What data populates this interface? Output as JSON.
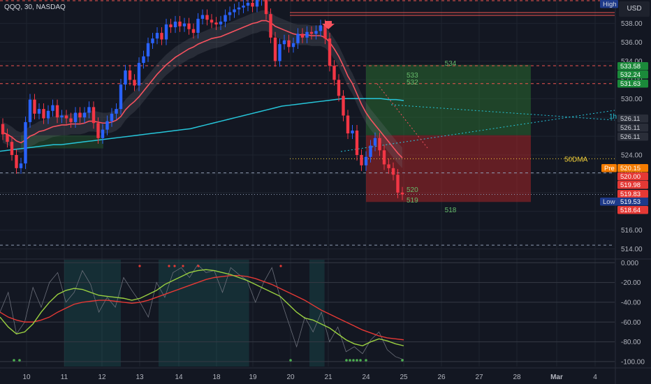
{
  "symbol_title": "QQQ, 30, NASDAQ",
  "currency": "USD",
  "colors": {
    "background": "#131722",
    "grid": "#1f2430",
    "up": "#2962ff",
    "down": "#f23645",
    "ema": "#f7525f",
    "sma": "#26c6da",
    "long_green": "#2e7d32",
    "short_red": "#c62828",
    "osc_fast": "#9bd140",
    "osc_slow": "#e53935",
    "osc_raw": "#6b6f7a"
  },
  "chart_data": [
    {
      "type": "candlestick",
      "title": "QQQ, 30, NASDAQ",
      "x_tick_labels": [
        "10",
        "11",
        "12",
        "13",
        "14",
        "18",
        "19",
        "20",
        "21",
        "24",
        "25",
        "26",
        "27",
        "28",
        "Mar",
        "4"
      ],
      "y_tick_labels": [
        "538.00",
        "536.00",
        "534.00",
        "532.00",
        "530.00",
        "528.00",
        "526.00",
        "524.00",
        "522.00",
        "520.00",
        "518.00",
        "516.00",
        "514.00"
      ],
      "ylim": [
        513,
        540.5
      ],
      "close_series": [
        526.2,
        525.4,
        524.0,
        522.6,
        523.1,
        527.5,
        529.9,
        528.4,
        528.9,
        527.9,
        528.7,
        529.3,
        528.0,
        528.2,
        527.9,
        527.5,
        528.5,
        528.0,
        528.5,
        529.1,
        527.4,
        525.8,
        526.7,
        527.6,
        528.4,
        528.9,
        531.5,
        533.0,
        532.0,
        531.4,
        533.8,
        534.5,
        535.9,
        536.4,
        537.0,
        536.3,
        537.9,
        537.6,
        538.2,
        537.7,
        538.0,
        537.4,
        537.0,
        538.5,
        538.9,
        538.4,
        538.1,
        537.9,
        538.2,
        538.9,
        539.2,
        539.5,
        539.7,
        539.9,
        540.2,
        539.8,
        540.5,
        541.0,
        539.0,
        536.5,
        534.0,
        535.8,
        536.2,
        535.5,
        535.9,
        536.9,
        536.5,
        537.1,
        536.9,
        537.2,
        537.8,
        536.4,
        533.5,
        532.0,
        530.3,
        528.2,
        526.3,
        526.6,
        524.0,
        522.9,
        523.8,
        525.0,
        525.8,
        524.5,
        523.0,
        522.6,
        521.9,
        520.0,
        519.8
      ],
      "open_series": [
        527.3,
        526.2,
        525.4,
        524.0,
        522.6,
        523.1,
        527.5,
        529.9,
        528.4,
        528.9,
        527.9,
        528.7,
        529.3,
        528.0,
        528.2,
        527.9,
        527.5,
        528.5,
        528.0,
        528.5,
        529.1,
        527.4,
        525.8,
        526.7,
        527.6,
        528.4,
        528.9,
        531.5,
        533.0,
        532.0,
        531.4,
        533.8,
        534.5,
        535.9,
        536.4,
        537.0,
        536.3,
        537.9,
        537.6,
        538.2,
        537.7,
        538.0,
        537.4,
        537.0,
        538.5,
        538.9,
        538.4,
        538.1,
        537.9,
        538.2,
        538.9,
        539.2,
        539.5,
        539.7,
        539.9,
        540.2,
        539.8,
        540.5,
        541.0,
        539.0,
        536.5,
        534.0,
        535.8,
        536.2,
        535.5,
        535.9,
        536.9,
        536.5,
        537.1,
        536.9,
        537.2,
        537.8,
        536.4,
        533.5,
        532.0,
        530.3,
        528.2,
        526.3,
        526.6,
        524.0,
        522.9,
        523.8,
        525.0,
        525.8,
        524.5,
        523.0,
        522.6,
        521.9,
        520.0
      ],
      "indicators": {
        "ema": [
          526.4,
          526.2,
          525.9,
          525.5,
          525.3,
          525.6,
          526.0,
          526.2,
          526.5,
          526.6,
          526.8,
          527.0,
          527.1,
          527.2,
          527.2,
          527.3,
          527.3,
          527.3,
          527.4,
          527.6,
          527.6,
          527.5,
          527.4,
          527.4,
          527.5,
          527.7,
          528.1,
          528.8,
          529.3,
          529.7,
          530.2,
          530.8,
          531.4,
          532.0,
          532.6,
          533.1,
          533.6,
          534.0,
          534.4,
          534.7,
          535.0,
          535.3,
          535.5,
          535.8,
          536.0,
          536.2,
          536.4,
          536.5,
          536.6,
          536.8,
          537.0,
          537.2,
          537.4,
          537.6,
          537.8,
          538.0,
          538.1,
          538.3,
          538.3,
          538.1,
          537.7,
          537.5,
          537.3,
          537.1,
          536.9,
          536.8,
          536.8,
          536.8,
          536.7,
          536.7,
          536.7,
          536.5,
          536.0,
          535.3,
          534.5,
          533.5,
          532.4,
          531.6,
          530.5,
          529.4,
          528.5,
          527.8,
          527.2,
          526.6,
          526.0,
          525.4,
          524.8,
          524.2,
          523.7
        ],
        "sma_200": [
          524.4,
          524.5,
          524.6,
          524.7,
          524.8,
          524.9,
          525.0,
          525.1,
          525.1,
          525.2,
          525.3,
          525.4,
          525.5,
          525.6,
          525.7,
          525.8,
          525.9,
          526.0,
          526.1,
          526.2,
          526.3,
          526.4,
          526.5,
          526.6,
          526.7,
          526.8,
          527.0,
          527.2,
          527.4,
          527.6,
          527.8,
          528.0,
          528.2,
          528.4,
          528.6,
          528.8,
          529.0,
          529.2,
          529.3,
          529.4,
          529.5,
          529.6,
          529.7,
          529.8,
          529.9,
          530.0,
          530.0,
          530.0,
          530.0,
          530.0,
          530.0,
          529.9,
          529.9,
          529.8
        ]
      },
      "horizontal_levels": [
        {
          "value": 533.5,
          "style": "dashed",
          "color": "#ef5350"
        },
        {
          "value": 531.6,
          "style": "dashed",
          "color": "#ef5350"
        },
        {
          "value": 523.6,
          "style": "dotted",
          "color": "#f5d33a",
          "label": "50DMA"
        },
        {
          "value": 522.1,
          "style": "dashed",
          "color": "#8f9bb3"
        },
        {
          "value": 519.8,
          "style": "dotted",
          "color": "#8f9bb3"
        },
        {
          "value": 514.4,
          "style": "dashed",
          "color": "#8f9bb3"
        }
      ],
      "position_boxes": [
        {
          "kind": "long",
          "target": 533.6,
          "entry": 526.1,
          "stop": 519.0
        },
        {
          "kind": "long_small",
          "target": 526.1,
          "entry": 524.7,
          "stop": 522.2
        }
      ],
      "chart_annotations": [
        "534",
        "533",
        "532",
        "520",
        "519",
        "518",
        "1h"
      ],
      "price_labels": [
        {
          "text": "High",
          "kind": "tag"
        },
        {
          "text": "533.58",
          "kind": "green"
        },
        {
          "text": "532.24",
          "kind": "green"
        },
        {
          "text": "531.63",
          "kind": "green"
        },
        {
          "text": "526.11",
          "kind": "gray"
        },
        {
          "text": "526.11",
          "kind": "gray"
        },
        {
          "text": "526.11",
          "kind": "gray"
        },
        {
          "text": "Pre",
          "kind": "pre_tag"
        },
        {
          "text": "520.15",
          "kind": "orange"
        },
        {
          "text": "520.00",
          "kind": "red"
        },
        {
          "text": "519.98",
          "kind": "red"
        },
        {
          "text": "519.83",
          "kind": "red"
        },
        {
          "text": "Low",
          "kind": "tag"
        },
        {
          "text": "519.53",
          "kind": "navy"
        },
        {
          "text": "518.64",
          "kind": "red"
        }
      ]
    },
    {
      "type": "line",
      "title": "",
      "y_tick_labels": [
        "0.000",
        "-20.00",
        "-40.00",
        "-60.00",
        "-80.00",
        "-100.00"
      ],
      "ylim": [
        -105,
        3
      ],
      "series": [
        {
          "values": [
            -55,
            -65,
            -72,
            -70,
            -62,
            -50,
            -40,
            -32,
            -28,
            -26,
            -27,
            -30,
            -33,
            -34,
            -35,
            -36,
            -38,
            -36,
            -32,
            -28,
            -22,
            -18,
            -14,
            -10,
            -8,
            -7,
            -8,
            -10,
            -12,
            -15,
            -18,
            -22,
            -26,
            -30,
            -34,
            -42,
            -50,
            -56,
            -58,
            -62,
            -66,
            -72,
            -78,
            -82,
            -84,
            -80,
            -77,
            -79,
            -82,
            -84
          ]
        },
        {
          "values": [
            -50,
            -55,
            -58,
            -60,
            -60,
            -58,
            -55,
            -50,
            -46,
            -42,
            -40,
            -39,
            -38,
            -38,
            -39,
            -40,
            -41,
            -40,
            -38,
            -35,
            -32,
            -29,
            -26,
            -23,
            -20,
            -17,
            -15,
            -14,
            -13,
            -13,
            -14,
            -16,
            -19,
            -22,
            -26,
            -30,
            -34,
            -38,
            -43,
            -48,
            -52,
            -56,
            -60,
            -64,
            -68,
            -71,
            -74,
            -76,
            -77,
            -78
          ]
        }
      ],
      "raw_series": [
        -50,
        -30,
        -72,
        -60,
        -25,
        -45,
        -20,
        -10,
        -40,
        -30,
        -8,
        -22,
        -50,
        -35,
        -45,
        -15,
        -28,
        -40,
        -55,
        -20,
        -35,
        -10,
        -5,
        -15,
        -2,
        -10,
        -8,
        -30,
        -5,
        -12,
        -18,
        -40,
        -20,
        -5,
        -35,
        -60,
        -85,
        -55,
        -70,
        -50,
        -80,
        -65,
        -90,
        -85,
        -92,
        -78,
        -70,
        -88,
        -95,
        -98
      ],
      "shaded_regions": [
        [
          1,
          2.5
        ],
        [
          3.5,
          5.9
        ],
        [
          7.5,
          7.9
        ]
      ]
    }
  ]
}
